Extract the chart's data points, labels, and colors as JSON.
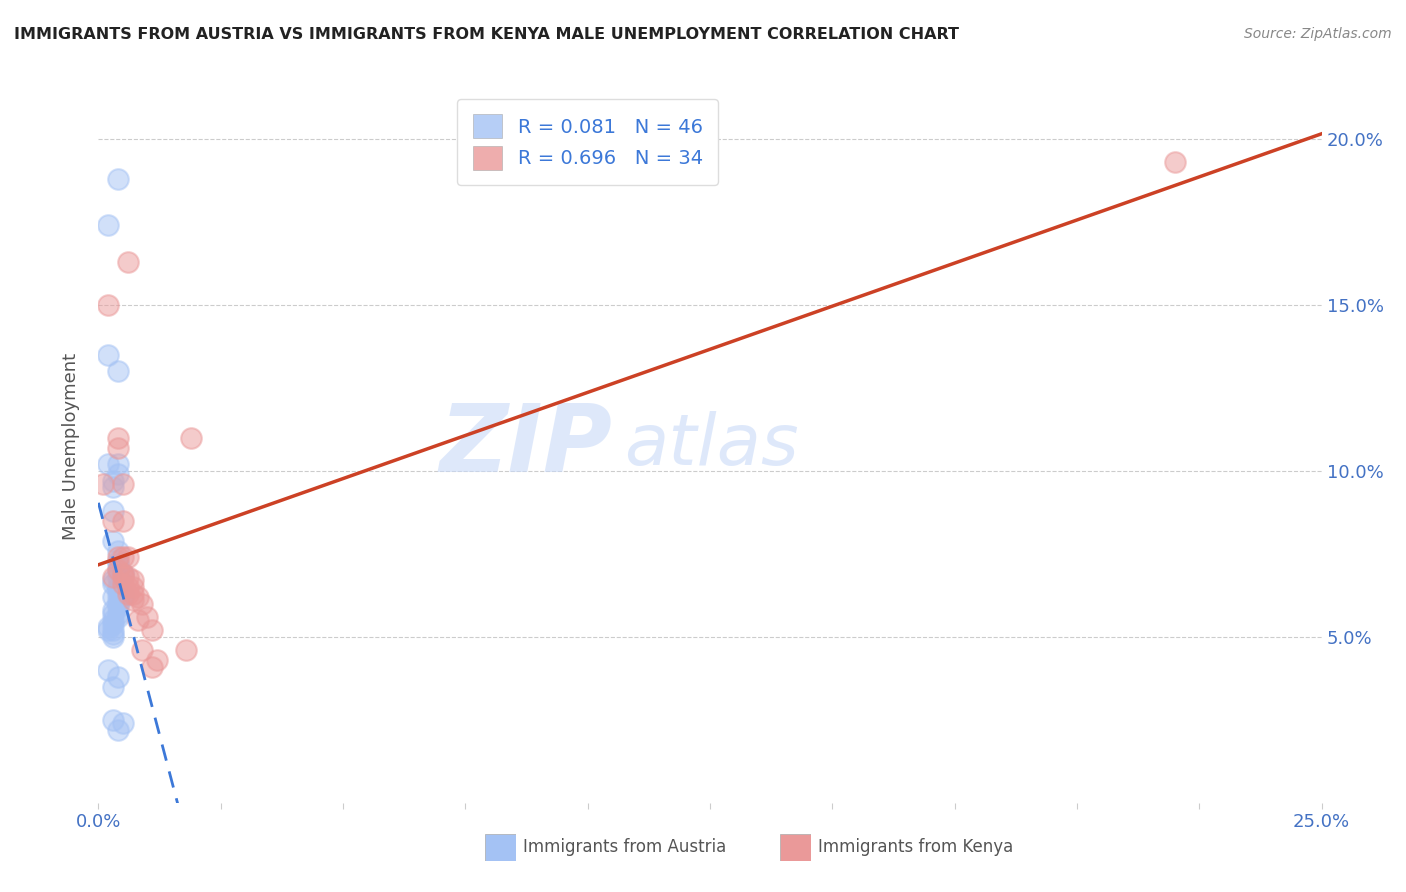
{
  "title": "IMMIGRANTS FROM AUSTRIA VS IMMIGRANTS FROM KENYA MALE UNEMPLOYMENT CORRELATION CHART",
  "source": "Source: ZipAtlas.com",
  "ylabel": "Male Unemployment",
  "xlim": [
    0.0,
    0.25
  ],
  "ylim": [
    0.0,
    0.215
  ],
  "legend_line1": "R = 0.081   N = 46",
  "legend_line2": "R = 0.696   N = 34",
  "austria_color": "#a4c2f4",
  "kenya_color": "#ea9999",
  "austria_trend_color": "#3c78d8",
  "kenya_trend_color": "#cc4125",
  "watermark": "ZIPatlas",
  "austria_scatter": [
    [
      0.002,
      0.174
    ],
    [
      0.004,
      0.188
    ],
    [
      0.002,
      0.135
    ],
    [
      0.004,
      0.13
    ],
    [
      0.002,
      0.102
    ],
    [
      0.003,
      0.097
    ],
    [
      0.003,
      0.095
    ],
    [
      0.003,
      0.088
    ],
    [
      0.004,
      0.102
    ],
    [
      0.004,
      0.099
    ],
    [
      0.003,
      0.079
    ],
    [
      0.004,
      0.076
    ],
    [
      0.004,
      0.073
    ],
    [
      0.004,
      0.072
    ],
    [
      0.004,
      0.07
    ],
    [
      0.005,
      0.069
    ],
    [
      0.005,
      0.069
    ],
    [
      0.004,
      0.068
    ],
    [
      0.003,
      0.067
    ],
    [
      0.003,
      0.066
    ],
    [
      0.004,
      0.065
    ],
    [
      0.004,
      0.064
    ],
    [
      0.004,
      0.063
    ],
    [
      0.005,
      0.063
    ],
    [
      0.003,
      0.062
    ],
    [
      0.005,
      0.062
    ],
    [
      0.004,
      0.061
    ],
    [
      0.004,
      0.06
    ],
    [
      0.004,
      0.059
    ],
    [
      0.003,
      0.058
    ],
    [
      0.004,
      0.057
    ],
    [
      0.003,
      0.057
    ],
    [
      0.004,
      0.056
    ],
    [
      0.003,
      0.055
    ],
    [
      0.003,
      0.054
    ],
    [
      0.002,
      0.053
    ],
    [
      0.002,
      0.052
    ],
    [
      0.003,
      0.052
    ],
    [
      0.003,
      0.051
    ],
    [
      0.003,
      0.05
    ],
    [
      0.002,
      0.04
    ],
    [
      0.004,
      0.038
    ],
    [
      0.003,
      0.035
    ],
    [
      0.003,
      0.025
    ],
    [
      0.005,
      0.024
    ],
    [
      0.004,
      0.022
    ]
  ],
  "kenya_scatter": [
    [
      0.001,
      0.096
    ],
    [
      0.002,
      0.15
    ],
    [
      0.006,
      0.163
    ],
    [
      0.004,
      0.11
    ],
    [
      0.004,
      0.107
    ],
    [
      0.003,
      0.068
    ],
    [
      0.005,
      0.096
    ],
    [
      0.005,
      0.085
    ],
    [
      0.003,
      0.085
    ],
    [
      0.004,
      0.074
    ],
    [
      0.005,
      0.074
    ],
    [
      0.006,
      0.074
    ],
    [
      0.004,
      0.07
    ],
    [
      0.005,
      0.069
    ],
    [
      0.005,
      0.068
    ],
    [
      0.006,
      0.068
    ],
    [
      0.007,
      0.067
    ],
    [
      0.005,
      0.066
    ],
    [
      0.006,
      0.065
    ],
    [
      0.007,
      0.065
    ],
    [
      0.006,
      0.063
    ],
    [
      0.007,
      0.063
    ],
    [
      0.008,
      0.062
    ],
    [
      0.007,
      0.061
    ],
    [
      0.009,
      0.06
    ],
    [
      0.01,
      0.056
    ],
    [
      0.008,
      0.055
    ],
    [
      0.011,
      0.052
    ],
    [
      0.009,
      0.046
    ],
    [
      0.012,
      0.043
    ],
    [
      0.011,
      0.041
    ],
    [
      0.019,
      0.11
    ],
    [
      0.018,
      0.046
    ],
    [
      0.22,
      0.193
    ]
  ],
  "figsize": [
    14.06,
    8.92
  ],
  "dpi": 100
}
